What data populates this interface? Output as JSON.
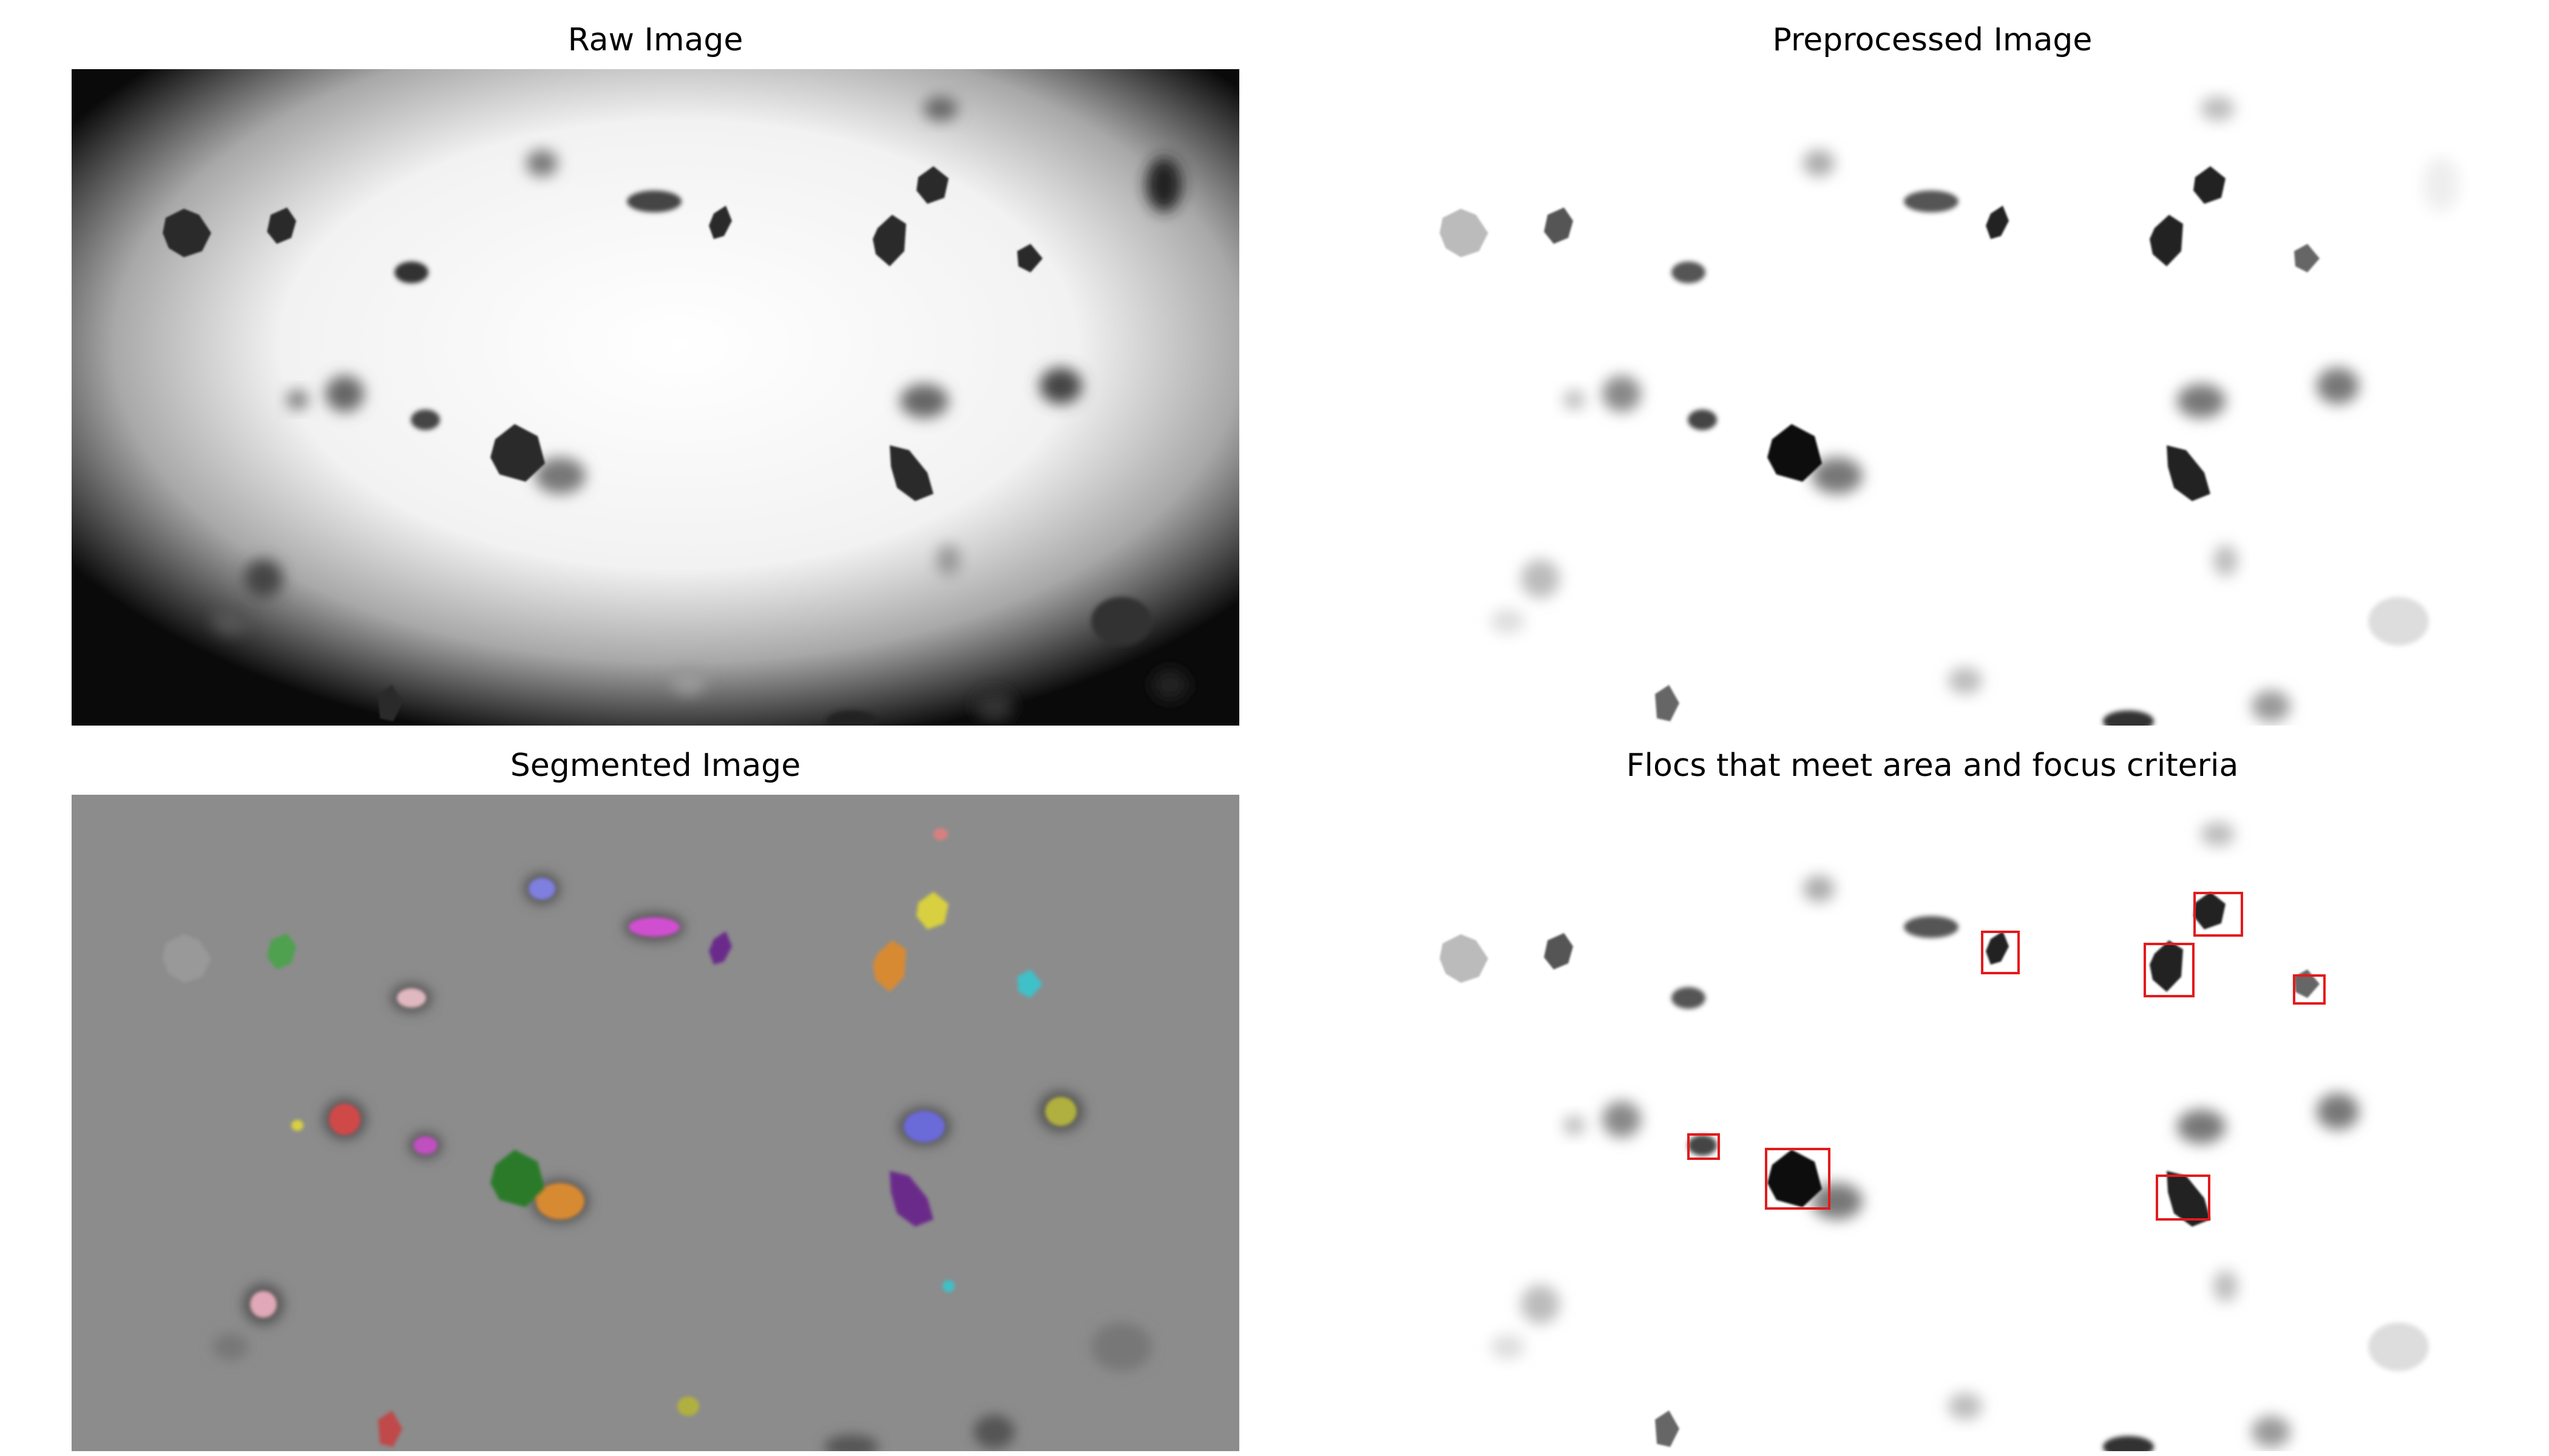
{
  "panels": {
    "raw": {
      "title": "Raw Image"
    },
    "preprocessed": {
      "title": "Preprocessed Image"
    },
    "segmented": {
      "title": "Segmented Image"
    },
    "filtered": {
      "title": "Flocs that meet area and focus criteria"
    }
  },
  "colors": {
    "detection_box": "#e31a1c",
    "segment_palette": [
      "#7f7fe0",
      "#d050d0",
      "#6a2a8a",
      "#d8d040",
      "#d88a30",
      "#40c0c8",
      "#d04848",
      "#50a050",
      "#b0b040",
      "#e0a8b8",
      "#5a8a5a"
    ]
  }
}
